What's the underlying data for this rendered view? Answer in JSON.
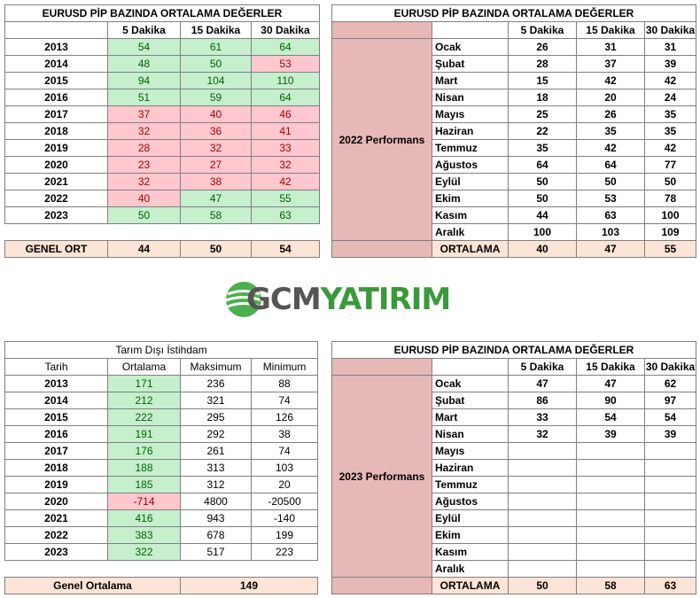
{
  "t1": {
    "title": "EURUSD  PİP BAZINDA ORTALAMA DEĞERLER",
    "headers": [
      "",
      "5 Dakika",
      "15 Dakika",
      "30 Dakika"
    ],
    "rows": [
      {
        "label": "2013",
        "v": [
          "54",
          "61",
          "64"
        ],
        "c": [
          "green",
          "green",
          "green"
        ]
      },
      {
        "label": "2014",
        "v": [
          "48",
          "50",
          "53"
        ],
        "c": [
          "green",
          "green",
          "red"
        ]
      },
      {
        "label": "2015",
        "v": [
          "94",
          "104",
          "110"
        ],
        "c": [
          "green",
          "green",
          "green"
        ]
      },
      {
        "label": "2016",
        "v": [
          "51",
          "59",
          "64"
        ],
        "c": [
          "green",
          "green",
          "green"
        ]
      },
      {
        "label": "2017",
        "v": [
          "37",
          "40",
          "46"
        ],
        "c": [
          "red",
          "red",
          "red"
        ]
      },
      {
        "label": "2018",
        "v": [
          "32",
          "36",
          "41"
        ],
        "c": [
          "red",
          "red",
          "red"
        ]
      },
      {
        "label": "2019",
        "v": [
          "28",
          "32",
          "33"
        ],
        "c": [
          "red",
          "red",
          "red"
        ]
      },
      {
        "label": "2020",
        "v": [
          "23",
          "27",
          "32"
        ],
        "c": [
          "red",
          "red",
          "red"
        ]
      },
      {
        "label": "2021",
        "v": [
          "32",
          "38",
          "42"
        ],
        "c": [
          "red",
          "red",
          "red"
        ]
      },
      {
        "label": "2022",
        "v": [
          "40",
          "47",
          "55"
        ],
        "c": [
          "red",
          "green",
          "green"
        ]
      },
      {
        "label": "2023",
        "v": [
          "50",
          "58",
          "63"
        ],
        "c": [
          "green",
          "green",
          "green"
        ]
      }
    ],
    "summary": {
      "label": "GENEL ORT",
      "v": [
        "44",
        "50",
        "54"
      ]
    }
  },
  "t2": {
    "title": "EURUSD  PİP BAZINDA ORTALAMA DEĞERLER",
    "headers": [
      "",
      "",
      "5 Dakika",
      "15 Dakika",
      "30 Dakika"
    ],
    "side_label": "2022 Performans",
    "rows": [
      {
        "label": "Ocak",
        "v": [
          "26",
          "31",
          "31"
        ]
      },
      {
        "label": "Şubat",
        "v": [
          "28",
          "37",
          "39"
        ]
      },
      {
        "label": "Mart",
        "v": [
          "15",
          "42",
          "42"
        ]
      },
      {
        "label": "Nisan",
        "v": [
          "18",
          "20",
          "24"
        ]
      },
      {
        "label": "Mayıs",
        "v": [
          "25",
          "26",
          "35"
        ]
      },
      {
        "label": "Haziran",
        "v": [
          "22",
          "35",
          "35"
        ]
      },
      {
        "label": "Temmuz",
        "v": [
          "35",
          "42",
          "42"
        ]
      },
      {
        "label": "Ağustos",
        "v": [
          "64",
          "64",
          "77"
        ]
      },
      {
        "label": "Eylül",
        "v": [
          "50",
          "50",
          "50"
        ]
      },
      {
        "label": "Ekim",
        "v": [
          "50",
          "53",
          "78"
        ]
      },
      {
        "label": "Kasım",
        "v": [
          "44",
          "63",
          "100"
        ]
      },
      {
        "label": "Aralık",
        "v": [
          "100",
          "103",
          "109"
        ]
      }
    ],
    "summary": {
      "label": "ORTALAMA",
      "v": [
        "40",
        "47",
        "55"
      ]
    }
  },
  "logo": {
    "text_a": "GCM",
    "text_b": "YATIRIM",
    "color_a": "#555555",
    "color_b": "#3a9a3a"
  },
  "t3": {
    "title": "Tarım Dışı İstihdam",
    "headers": [
      "Tarih",
      "Ortalama",
      "Maksimum",
      "Minimum"
    ],
    "rows": [
      {
        "label": "2013",
        "v": [
          "171",
          "236",
          "88"
        ],
        "c": "green"
      },
      {
        "label": "2014",
        "v": [
          "212",
          "321",
          "74"
        ],
        "c": "green"
      },
      {
        "label": "2015",
        "v": [
          "222",
          "295",
          "126"
        ],
        "c": "green"
      },
      {
        "label": "2016",
        "v": [
          "191",
          "292",
          "38"
        ],
        "c": "green"
      },
      {
        "label": "2017",
        "v": [
          "176",
          "261",
          "74"
        ],
        "c": "green"
      },
      {
        "label": "2018",
        "v": [
          "188",
          "313",
          "103"
        ],
        "c": "green"
      },
      {
        "label": "2019",
        "v": [
          "185",
          "312",
          "20"
        ],
        "c": "green"
      },
      {
        "label": "2020",
        "v": [
          "-714",
          "4800",
          "-20500"
        ],
        "c": "red"
      },
      {
        "label": "2021",
        "v": [
          "416",
          "943",
          "-140"
        ],
        "c": "green"
      },
      {
        "label": "2022",
        "v": [
          "383",
          "678",
          "199"
        ],
        "c": "green"
      },
      {
        "label": "2023",
        "v": [
          "322",
          "517",
          "223"
        ],
        "c": "green"
      }
    ],
    "summary": {
      "label": "Genel Ortalama",
      "value": "149"
    }
  },
  "t4": {
    "title": "EURUSD  PİP BAZINDA ORTALAMA DEĞERLER",
    "headers": [
      "",
      "",
      "5 Dakika",
      "15 Dakika",
      "30 Dakika"
    ],
    "side_label": "2023 Performans",
    "rows": [
      {
        "label": "Ocak",
        "v": [
          "47",
          "47",
          "62"
        ]
      },
      {
        "label": "Şubat",
        "v": [
          "86",
          "90",
          "97"
        ]
      },
      {
        "label": "Mart",
        "v": [
          "33",
          "54",
          "54"
        ]
      },
      {
        "label": "Nisan",
        "v": [
          "32",
          "39",
          "39"
        ]
      },
      {
        "label": "Mayıs",
        "v": [
          "",
          "",
          ""
        ]
      },
      {
        "label": "Haziran",
        "v": [
          "",
          "",
          ""
        ]
      },
      {
        "label": "Temmuz",
        "v": [
          "",
          "",
          ""
        ]
      },
      {
        "label": "Ağustos",
        "v": [
          "",
          "",
          ""
        ]
      },
      {
        "label": "Eylül",
        "v": [
          "",
          "",
          ""
        ]
      },
      {
        "label": "Ekim",
        "v": [
          "",
          "",
          ""
        ]
      },
      {
        "label": "Kasım",
        "v": [
          "",
          "",
          ""
        ]
      },
      {
        "label": "Aralık",
        "v": [
          "",
          "",
          ""
        ]
      }
    ],
    "summary": {
      "label": "ORTALAMA",
      "v": [
        "50",
        "58",
        "63"
      ]
    }
  }
}
